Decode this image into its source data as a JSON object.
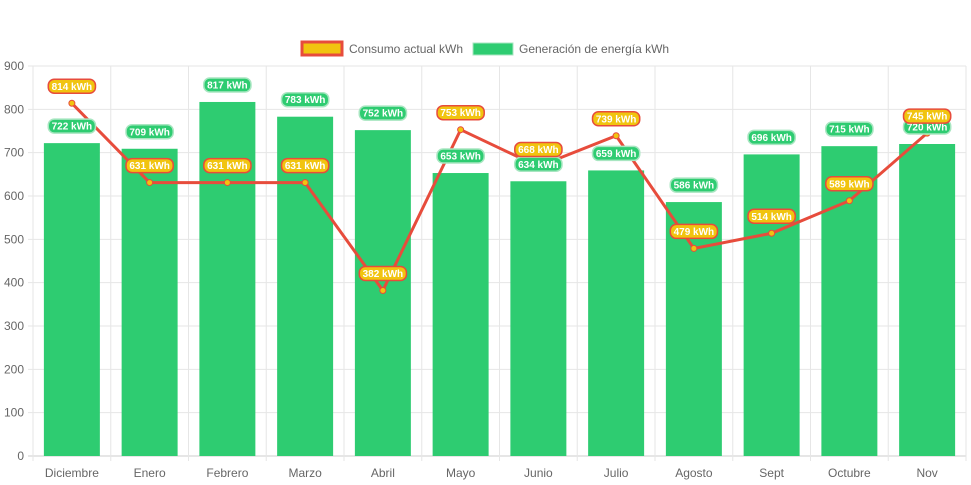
{
  "chart_data": {
    "type": "bar",
    "categories": [
      "Diciembre",
      "Enero",
      "Febrero",
      "Marzo",
      "Abril",
      "Mayo",
      "Junio",
      "Julio",
      "Agosto",
      "Sept",
      "Octubre",
      "Nov"
    ],
    "series": [
      {
        "name": "Consumo actual kWh",
        "type": "line",
        "color": "#e74c3c",
        "fill": "#f1c40f",
        "values": [
          814,
          631,
          631,
          631,
          382,
          753,
          668,
          739,
          479,
          514,
          589,
          745
        ]
      },
      {
        "name": "Generación de energía kWh",
        "type": "bar",
        "color": "#2ecc71",
        "values": [
          722,
          709,
          817,
          783,
          752,
          653,
          634,
          659,
          586,
          696,
          715,
          720
        ]
      }
    ],
    "unit": "kWh",
    "ylim": [
      0,
      900
    ],
    "yticks": [
      0,
      100,
      200,
      300,
      400,
      500,
      600,
      700,
      800,
      900
    ],
    "legend": "top-center",
    "grid": true
  }
}
